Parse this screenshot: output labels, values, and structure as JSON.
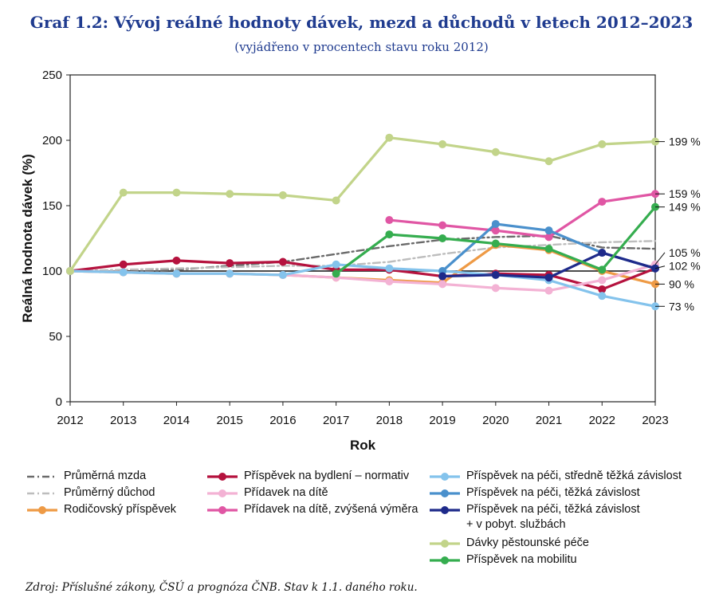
{
  "title": "Graf 1.2: Vývoj reálné hodnoty dávek, mezd a důchodů v letech 2012–2023",
  "subtitle": "(vyjádřeno v procentech stavu roku 2012)",
  "source": "Zdroj: Příslušné zákony, ČSÚ a prognóza ČNB. Stav k 1.1. daného roku.",
  "chart_data": {
    "type": "line",
    "xlabel": "Rok",
    "ylabel": "Reálná hodnota dávek (%)",
    "ylim": [
      0,
      250
    ],
    "yticks": [
      0,
      50,
      100,
      150,
      200,
      250
    ],
    "x": [
      2012,
      2013,
      2014,
      2015,
      2016,
      2017,
      2018,
      2019,
      2020,
      2021,
      2022,
      2023
    ],
    "reference_line": 100,
    "legend_placement": "bottom",
    "series": [
      {
        "name": "Průměrná mzda",
        "color": "#6b6b6b",
        "style": "dashdot",
        "markers": false,
        "values": [
          100,
          99,
          101,
          104,
          107,
          113,
          119,
          124,
          126,
          127,
          118,
          117
        ]
      },
      {
        "name": "Průměrný důchod",
        "color": "#bdbdbd",
        "style": "dashdot",
        "markers": false,
        "values": [
          100,
          101,
          102,
          103,
          104,
          104,
          107,
          113,
          118,
          120,
          122,
          123
        ]
      },
      {
        "name": "Rodičovský příspěvek",
        "color": "#ee9a45",
        "style": "solid",
        "markers": true,
        "values": [
          100,
          99,
          98,
          98,
          97,
          95,
          93,
          91,
          120,
          116,
          100,
          90
        ]
      },
      {
        "name": "Příspěvek na bydlení – normativ",
        "color": "#b5123e",
        "style": "solid",
        "markers": true,
        "values": [
          100,
          105,
          108,
          106,
          107,
          101,
          101,
          96,
          98,
          97,
          86,
          102
        ]
      },
      {
        "name": "Přídavek na dítě",
        "color": "#f3b2d4",
        "style": "solid",
        "markers": true,
        "values": [
          100,
          99,
          98,
          98,
          97,
          95,
          92,
          90,
          87,
          85,
          93,
          105
        ]
      },
      {
        "name": "Přídavek na dítě, zvýšená výměra",
        "color": "#e056a4",
        "style": "solid",
        "markers": true,
        "values": [
          null,
          null,
          null,
          null,
          null,
          null,
          139,
          135,
          131,
          126,
          153,
          159
        ]
      },
      {
        "name": "Příspěvek na péči, středně těžká závislost",
        "color": "#84c3ec",
        "style": "solid",
        "markers": true,
        "values": [
          100,
          99,
          98,
          98,
          97,
          105,
          102,
          100,
          97,
          93,
          81,
          73
        ]
      },
      {
        "name": "Příspěvek na péči, těžká závislost",
        "color": "#4a90cc",
        "style": "solid",
        "markers": true,
        "values": [
          null,
          null,
          null,
          null,
          null,
          null,
          null,
          100,
          136,
          131,
          114,
          102
        ]
      },
      {
        "name": "Příspěvek na péči, těžká závislost + v pobyt. službách",
        "color": "#1e2a8a",
        "style": "solid",
        "markers": true,
        "values": [
          null,
          null,
          null,
          null,
          null,
          null,
          null,
          96,
          97,
          95,
          114,
          102
        ]
      },
      {
        "name": "Dávky pěstounské péče",
        "color": "#c2d48a",
        "style": "solid",
        "markers": true,
        "values": [
          100,
          160,
          160,
          159,
          158,
          154,
          202,
          197,
          191,
          184,
          197,
          199
        ]
      },
      {
        "name": "Příspěvek na mobilitu",
        "color": "#35ad4f",
        "style": "solid",
        "markers": true,
        "values": [
          null,
          null,
          null,
          null,
          null,
          98,
          128,
          125,
          121,
          117,
          101,
          149
        ]
      }
    ],
    "end_labels": [
      {
        "text": "199 %",
        "value": 199
      },
      {
        "text": "159 %",
        "value": 159
      },
      {
        "text": "149 %",
        "value": 149
      },
      {
        "text": "105 %",
        "value": 105
      },
      {
        "text": "102 %",
        "value": 102
      },
      {
        "text": "90 %",
        "value": 90
      },
      {
        "text": "73 %",
        "value": 73
      }
    ]
  },
  "legend": [
    {
      "label": "Průměrná mzda",
      "series": 0
    },
    {
      "label": "Průměrný důchod",
      "series": 1
    },
    {
      "label": "Rodičovský příspěvek",
      "series": 2
    },
    {
      "label": "Příspěvek na bydlení – normativ",
      "series": 3
    },
    {
      "label": "Přídavek na dítě",
      "series": 4
    },
    {
      "label": "Přídavek na dítě, zvýšená výměra",
      "series": 5
    },
    {
      "label": "Příspěvek na péči, středně těžká závislost",
      "series": 6
    },
    {
      "label": "Příspěvek na péči, těžká závislost",
      "series": 7
    },
    {
      "label": "Příspěvek na péči, těžká závislost",
      "label2": "+ v pobyt. službách",
      "series": 8
    },
    {
      "label": "Dávky pěstounské péče",
      "series": 9
    },
    {
      "label": "Příspěvek na mobilitu",
      "series": 10
    }
  ]
}
